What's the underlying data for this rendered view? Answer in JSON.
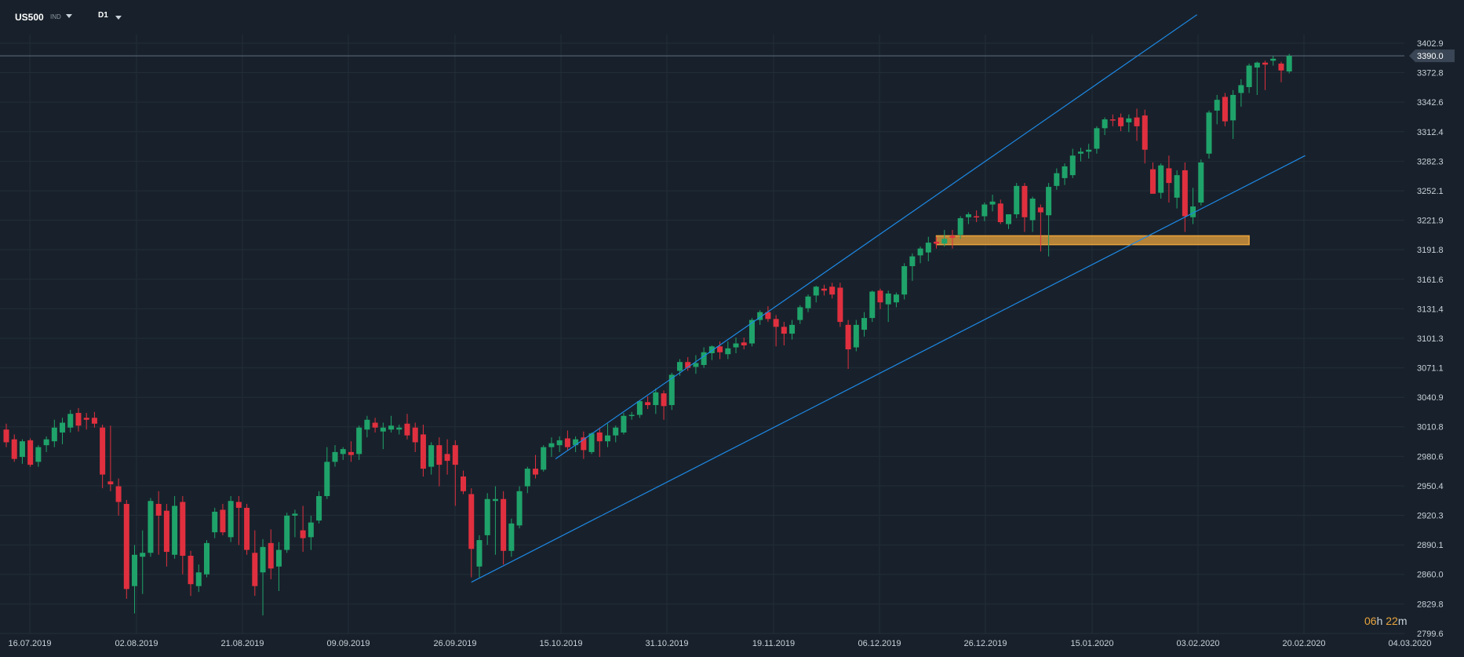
{
  "toolbar": {
    "symbol": "US500",
    "symbol_type": "IND",
    "timeframe": "D1"
  },
  "timer": {
    "hours": "06",
    "h_unit": "h",
    "minutes": "22",
    "m_unit": "m"
  },
  "colors": {
    "background": "#18212b",
    "grid": "#222d38",
    "up": "#1fa36a",
    "down": "#e0303f",
    "trend_line": "#1e88e5",
    "support_zone": "#e8a33d",
    "axis_text": "#c9d1d9",
    "price_line": "#5e6e7e"
  },
  "chart_data": {
    "type": "candlestick",
    "title": "",
    "instrument": "US500",
    "timeframe": "D1",
    "current_price": "3390.0",
    "ylim": [
      2795,
      3420
    ],
    "y_ticks": [
      "3402.9",
      "3372.8",
      "3342.6",
      "3312.4",
      "3282.3",
      "3252.1",
      "3221.9",
      "3191.8",
      "3161.6",
      "3131.4",
      "3101.3",
      "3071.1",
      "3040.9",
      "3010.8",
      "2980.6",
      "2950.4",
      "2920.3",
      "2890.1",
      "2860.0",
      "2829.8",
      "2799.6"
    ],
    "x_ticks": [
      "16.07.2019",
      "02.08.2019",
      "21.08.2019",
      "09.09.2019",
      "26.09.2019",
      "15.10.2019",
      "31.10.2019",
      "19.11.2019",
      "06.12.2019",
      "26.12.2019",
      "15.01.2020",
      "03.02.2020",
      "20.02.2020",
      "04.03.2020"
    ],
    "candles": [
      {
        "o": 3008,
        "h": 3014,
        "l": 2990,
        "c": 2995
      },
      {
        "o": 2998,
        "h": 3003,
        "l": 2975,
        "c": 2978
      },
      {
        "o": 2980,
        "h": 2998,
        "l": 2973,
        "c": 2996
      },
      {
        "o": 2997,
        "h": 2999,
        "l": 2970,
        "c": 2972
      },
      {
        "o": 2975,
        "h": 2992,
        "l": 2970,
        "c": 2990
      },
      {
        "o": 2992,
        "h": 3001,
        "l": 2985,
        "c": 2998
      },
      {
        "o": 2996,
        "h": 3018,
        "l": 2990,
        "c": 3010
      },
      {
        "o": 3005,
        "h": 3020,
        "l": 2993,
        "c": 3015
      },
      {
        "o": 3010,
        "h": 3028,
        "l": 3005,
        "c": 3024
      },
      {
        "o": 3025,
        "h": 3030,
        "l": 3006,
        "c": 3012
      },
      {
        "o": 3020,
        "h": 3025,
        "l": 3008,
        "c": 3018
      },
      {
        "o": 3020,
        "h": 3026,
        "l": 3010,
        "c": 3014
      },
      {
        "o": 3010,
        "h": 3013,
        "l": 2948,
        "c": 2962
      },
      {
        "o": 2955,
        "h": 3012,
        "l": 2945,
        "c": 2952
      },
      {
        "o": 2950,
        "h": 2958,
        "l": 2920,
        "c": 2934
      },
      {
        "o": 2932,
        "h": 2936,
        "l": 2835,
        "c": 2845
      },
      {
        "o": 2848,
        "h": 2890,
        "l": 2820,
        "c": 2880
      },
      {
        "o": 2878,
        "h": 2905,
        "l": 2840,
        "c": 2882
      },
      {
        "o": 2882,
        "h": 2938,
        "l": 2878,
        "c": 2935
      },
      {
        "o": 2932,
        "h": 2945,
        "l": 2880,
        "c": 2920
      },
      {
        "o": 2925,
        "h": 2932,
        "l": 2868,
        "c": 2883
      },
      {
        "o": 2880,
        "h": 2940,
        "l": 2876,
        "c": 2930
      },
      {
        "o": 2934,
        "h": 2940,
        "l": 2860,
        "c": 2879
      },
      {
        "o": 2879,
        "h": 2884,
        "l": 2838,
        "c": 2850
      },
      {
        "o": 2848,
        "h": 2870,
        "l": 2842,
        "c": 2862
      },
      {
        "o": 2860,
        "h": 2895,
        "l": 2857,
        "c": 2892
      },
      {
        "o": 2903,
        "h": 2928,
        "l": 2897,
        "c": 2924
      },
      {
        "o": 2926,
        "h": 2932,
        "l": 2900,
        "c": 2903
      },
      {
        "o": 2898,
        "h": 2940,
        "l": 2893,
        "c": 2935
      },
      {
        "o": 2934,
        "h": 2940,
        "l": 2890,
        "c": 2928
      },
      {
        "o": 2928,
        "h": 2932,
        "l": 2880,
        "c": 2885
      },
      {
        "o": 2882,
        "h": 2905,
        "l": 2838,
        "c": 2848
      },
      {
        "o": 2862,
        "h": 2896,
        "l": 2818,
        "c": 2888
      },
      {
        "o": 2892,
        "h": 2906,
        "l": 2855,
        "c": 2866
      },
      {
        "o": 2868,
        "h": 2893,
        "l": 2843,
        "c": 2885
      },
      {
        "o": 2885,
        "h": 2923,
        "l": 2882,
        "c": 2920
      },
      {
        "o": 2920,
        "h": 2926,
        "l": 2898,
        "c": 2922
      },
      {
        "o": 2905,
        "h": 2930,
        "l": 2883,
        "c": 2897
      },
      {
        "o": 2898,
        "h": 2920,
        "l": 2885,
        "c": 2913
      },
      {
        "o": 2915,
        "h": 2945,
        "l": 2912,
        "c": 2940
      },
      {
        "o": 2940,
        "h": 2990,
        "l": 2937,
        "c": 2975
      },
      {
        "o": 2975,
        "h": 2992,
        "l": 2970,
        "c": 2985
      },
      {
        "o": 2983,
        "h": 2990,
        "l": 2977,
        "c": 2988
      },
      {
        "o": 2985,
        "h": 2996,
        "l": 2975,
        "c": 2982
      },
      {
        "o": 2983,
        "h": 3012,
        "l": 2977,
        "c": 3010
      },
      {
        "o": 3008,
        "h": 3022,
        "l": 3000,
        "c": 3018
      },
      {
        "o": 3015,
        "h": 3020,
        "l": 3005,
        "c": 3010
      },
      {
        "o": 3006,
        "h": 3015,
        "l": 2988,
        "c": 3010
      },
      {
        "o": 3008,
        "h": 3022,
        "l": 3005,
        "c": 3012
      },
      {
        "o": 3008,
        "h": 3013,
        "l": 3003,
        "c": 3010
      },
      {
        "o": 3014,
        "h": 3024,
        "l": 2998,
        "c": 3002
      },
      {
        "o": 3010,
        "h": 3015,
        "l": 2985,
        "c": 2995
      },
      {
        "o": 3003,
        "h": 3013,
        "l": 2960,
        "c": 2968
      },
      {
        "o": 2970,
        "h": 2995,
        "l": 2962,
        "c": 2992
      },
      {
        "o": 2992,
        "h": 3000,
        "l": 2950,
        "c": 2972
      },
      {
        "o": 2983,
        "h": 2998,
        "l": 2962,
        "c": 2976
      },
      {
        "o": 2992,
        "h": 2997,
        "l": 2930,
        "c": 2972
      },
      {
        "o": 2960,
        "h": 2966,
        "l": 2942,
        "c": 2945
      },
      {
        "o": 2942,
        "h": 2948,
        "l": 2857,
        "c": 2886
      },
      {
        "o": 2868,
        "h": 2900,
        "l": 2857,
        "c": 2895
      },
      {
        "o": 2900,
        "h": 2943,
        "l": 2890,
        "c": 2937
      },
      {
        "o": 2935,
        "h": 2950,
        "l": 2880,
        "c": 2937
      },
      {
        "o": 2937,
        "h": 2945,
        "l": 2870,
        "c": 2884
      },
      {
        "o": 2884,
        "h": 2917,
        "l": 2878,
        "c": 2912
      },
      {
        "o": 2910,
        "h": 2950,
        "l": 2907,
        "c": 2945
      },
      {
        "o": 2950,
        "h": 2970,
        "l": 2943,
        "c": 2968
      },
      {
        "o": 2968,
        "h": 2982,
        "l": 2958,
        "c": 2962
      },
      {
        "o": 2967,
        "h": 2992,
        "l": 2965,
        "c": 2990
      },
      {
        "o": 2990,
        "h": 3000,
        "l": 2980,
        "c": 2994
      },
      {
        "o": 2992,
        "h": 3001,
        "l": 2985,
        "c": 2997
      },
      {
        "o": 2999,
        "h": 3007,
        "l": 2987,
        "c": 2990
      },
      {
        "o": 2992,
        "h": 3001,
        "l": 2985,
        "c": 2998
      },
      {
        "o": 3000,
        "h": 3006,
        "l": 2978,
        "c": 2987
      },
      {
        "o": 2985,
        "h": 3005,
        "l": 2983,
        "c": 3004
      },
      {
        "o": 3005,
        "h": 3010,
        "l": 2980,
        "c": 2996
      },
      {
        "o": 2996,
        "h": 3014,
        "l": 2990,
        "c": 3002
      },
      {
        "o": 3002,
        "h": 3012,
        "l": 2995,
        "c": 3010
      },
      {
        "o": 3005,
        "h": 3025,
        "l": 3003,
        "c": 3022
      },
      {
        "o": 3022,
        "h": 3026,
        "l": 3018,
        "c": 3023
      },
      {
        "o": 3023,
        "h": 3038,
        "l": 3020,
        "c": 3037
      },
      {
        "o": 3036,
        "h": 3042,
        "l": 3029,
        "c": 3033
      },
      {
        "o": 3033,
        "h": 3050,
        "l": 3024,
        "c": 3046
      },
      {
        "o": 3045,
        "h": 3048,
        "l": 3018,
        "c": 3032
      },
      {
        "o": 3033,
        "h": 3066,
        "l": 3028,
        "c": 3064
      },
      {
        "o": 3068,
        "h": 3080,
        "l": 3063,
        "c": 3077
      },
      {
        "o": 3077,
        "h": 3082,
        "l": 3068,
        "c": 3071
      },
      {
        "o": 3072,
        "h": 3084,
        "l": 3065,
        "c": 3076
      },
      {
        "o": 3074,
        "h": 3092,
        "l": 3071,
        "c": 3087
      },
      {
        "o": 3086,
        "h": 3094,
        "l": 3079,
        "c": 3093
      },
      {
        "o": 3093,
        "h": 3098,
        "l": 3080,
        "c": 3087
      },
      {
        "o": 3085,
        "h": 3098,
        "l": 3080,
        "c": 3091
      },
      {
        "o": 3092,
        "h": 3102,
        "l": 3086,
        "c": 3096
      },
      {
        "o": 3097,
        "h": 3102,
        "l": 3090,
        "c": 3094
      },
      {
        "o": 3096,
        "h": 3122,
        "l": 3093,
        "c": 3120
      },
      {
        "o": 3120,
        "h": 3130,
        "l": 3115,
        "c": 3128
      },
      {
        "o": 3128,
        "h": 3134,
        "l": 3118,
        "c": 3121
      },
      {
        "o": 3121,
        "h": 3125,
        "l": 3093,
        "c": 3113
      },
      {
        "o": 3113,
        "h": 3118,
        "l": 3094,
        "c": 3106
      },
      {
        "o": 3106,
        "h": 3120,
        "l": 3100,
        "c": 3115
      },
      {
        "o": 3120,
        "h": 3135,
        "l": 3116,
        "c": 3133
      },
      {
        "o": 3132,
        "h": 3146,
        "l": 3128,
        "c": 3144
      },
      {
        "o": 3145,
        "h": 3155,
        "l": 3138,
        "c": 3154
      },
      {
        "o": 3152,
        "h": 3156,
        "l": 3145,
        "c": 3150
      },
      {
        "o": 3154,
        "h": 3158,
        "l": 3142,
        "c": 3146
      },
      {
        "o": 3153,
        "h": 3158,
        "l": 3113,
        "c": 3118
      },
      {
        "o": 3115,
        "h": 3120,
        "l": 3070,
        "c": 3090
      },
      {
        "o": 3092,
        "h": 3120,
        "l": 3088,
        "c": 3115
      },
      {
        "o": 3110,
        "h": 3128,
        "l": 3103,
        "c": 3122
      },
      {
        "o": 3122,
        "h": 3150,
        "l": 3118,
        "c": 3149
      },
      {
        "o": 3150,
        "h": 3152,
        "l": 3131,
        "c": 3138
      },
      {
        "o": 3136,
        "h": 3150,
        "l": 3118,
        "c": 3147
      },
      {
        "o": 3138,
        "h": 3148,
        "l": 3133,
        "c": 3146
      },
      {
        "o": 3146,
        "h": 3178,
        "l": 3141,
        "c": 3175
      },
      {
        "o": 3175,
        "h": 3188,
        "l": 3160,
        "c": 3185
      },
      {
        "o": 3186,
        "h": 3195,
        "l": 3178,
        "c": 3193
      },
      {
        "o": 3189,
        "h": 3205,
        "l": 3180,
        "c": 3199
      },
      {
        "o": 3200,
        "h": 3205,
        "l": 3193,
        "c": 3198
      },
      {
        "o": 3198,
        "h": 3212,
        "l": 3195,
        "c": 3203
      },
      {
        "o": 3206,
        "h": 3212,
        "l": 3193,
        "c": 3204
      },
      {
        "o": 3207,
        "h": 3226,
        "l": 3203,
        "c": 3224
      },
      {
        "o": 3225,
        "h": 3230,
        "l": 3218,
        "c": 3228
      },
      {
        "o": 3226,
        "h": 3232,
        "l": 3220,
        "c": 3225
      },
      {
        "o": 3226,
        "h": 3240,
        "l": 3221,
        "c": 3238
      },
      {
        "o": 3238,
        "h": 3248,
        "l": 3231,
        "c": 3241
      },
      {
        "o": 3239,
        "h": 3243,
        "l": 3218,
        "c": 3220
      },
      {
        "o": 3218,
        "h": 3228,
        "l": 3213,
        "c": 3228
      },
      {
        "o": 3228,
        "h": 3260,
        "l": 3224,
        "c": 3257
      },
      {
        "o": 3257,
        "h": 3260,
        "l": 3210,
        "c": 3225
      },
      {
        "o": 3222,
        "h": 3246,
        "l": 3210,
        "c": 3244
      },
      {
        "o": 3235,
        "h": 3238,
        "l": 3190,
        "c": 3230
      },
      {
        "o": 3227,
        "h": 3260,
        "l": 3185,
        "c": 3256
      },
      {
        "o": 3257,
        "h": 3275,
        "l": 3253,
        "c": 3270
      },
      {
        "o": 3265,
        "h": 3280,
        "l": 3258,
        "c": 3277
      },
      {
        "o": 3268,
        "h": 3295,
        "l": 3265,
        "c": 3288
      },
      {
        "o": 3290,
        "h": 3296,
        "l": 3282,
        "c": 3292
      },
      {
        "o": 3292,
        "h": 3300,
        "l": 3285,
        "c": 3294
      },
      {
        "o": 3295,
        "h": 3318,
        "l": 3290,
        "c": 3316
      },
      {
        "o": 3316,
        "h": 3327,
        "l": 3309,
        "c": 3325
      },
      {
        "o": 3325,
        "h": 3330,
        "l": 3318,
        "c": 3324
      },
      {
        "o": 3327,
        "h": 3331,
        "l": 3313,
        "c": 3318
      },
      {
        "o": 3322,
        "h": 3330,
        "l": 3312,
        "c": 3326
      },
      {
        "o": 3327,
        "h": 3336,
        "l": 3303,
        "c": 3318
      },
      {
        "o": 3329,
        "h": 3335,
        "l": 3280,
        "c": 3294
      },
      {
        "o": 3274,
        "h": 3281,
        "l": 3250,
        "c": 3249
      },
      {
        "o": 3250,
        "h": 3280,
        "l": 3244,
        "c": 3278
      },
      {
        "o": 3275,
        "h": 3288,
        "l": 3240,
        "c": 3260
      },
      {
        "o": 3245,
        "h": 3273,
        "l": 3234,
        "c": 3268
      },
      {
        "o": 3273,
        "h": 3281,
        "l": 3210,
        "c": 3226
      },
      {
        "o": 3225,
        "h": 3255,
        "l": 3218,
        "c": 3236
      },
      {
        "o": 3240,
        "h": 3284,
        "l": 3237,
        "c": 3281
      },
      {
        "o": 3290,
        "h": 3334,
        "l": 3285,
        "c": 3332
      },
      {
        "o": 3334,
        "h": 3350,
        "l": 3320,
        "c": 3345
      },
      {
        "o": 3348,
        "h": 3352,
        "l": 3318,
        "c": 3323
      },
      {
        "o": 3324,
        "h": 3355,
        "l": 3305,
        "c": 3350
      },
      {
        "o": 3352,
        "h": 3366,
        "l": 3338,
        "c": 3360
      },
      {
        "o": 3358,
        "h": 3382,
        "l": 3352,
        "c": 3380
      },
      {
        "o": 3378,
        "h": 3384,
        "l": 3350,
        "c": 3383
      },
      {
        "o": 3383,
        "h": 3385,
        "l": 3355,
        "c": 3381
      },
      {
        "o": 3385,
        "h": 3390,
        "l": 3380,
        "c": 3387
      },
      {
        "o": 3382,
        "h": 3384,
        "l": 3363,
        "c": 3375
      },
      {
        "o": 3374,
        "h": 3392,
        "l": 3372,
        "c": 3390
      }
    ],
    "trendlines": [
      {
        "name": "upper channel",
        "x1": 68.5,
        "y1": 2978,
        "x2": 148.5,
        "y2": 3432
      },
      {
        "name": "lower channel",
        "x1": 58,
        "y1": 2852,
        "x2": 162,
        "y2": 3288
      }
    ],
    "zones": [
      {
        "name": "support",
        "x1": 116,
        "x2": 155,
        "y_low": 3197,
        "y_high": 3206
      }
    ]
  }
}
